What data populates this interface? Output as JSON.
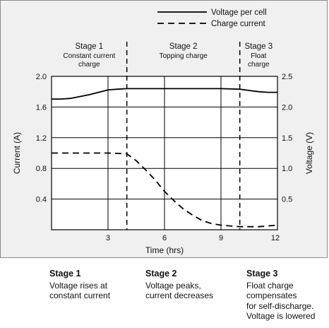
{
  "chart_data": {
    "type": "line",
    "xlabel": "Time (hrs)",
    "ylabel_left": "Current (A)",
    "ylabel_right": "Voltage (V)",
    "xlim": [
      0,
      12
    ],
    "ylim_left": [
      0,
      2.0
    ],
    "ylim_right": [
      0,
      2.5
    ],
    "x_ticks": [
      3,
      6,
      9,
      12
    ],
    "y_left_ticks": [
      0.4,
      0.8,
      1.2,
      1.6,
      2.0
    ],
    "y_right_ticks": [
      0.5,
      1.0,
      1.5,
      2.0,
      2.5
    ],
    "x_tick_labels": [
      "3",
      "6",
      "9",
      "12"
    ],
    "y_left_tick_labels": [
      "0.4",
      "0.8",
      "1.2",
      "1.6",
      "2.0"
    ],
    "y_right_tick_labels": [
      "0.5",
      "1.0",
      "1.5",
      "2.0",
      "2.5"
    ],
    "grid": true,
    "legend_position": "top-right",
    "stage_boundaries": [
      4,
      10
    ],
    "stages": [
      {
        "title": "Stage 1",
        "subtitle": [
          "Constant current",
          "charge"
        ]
      },
      {
        "title": "Stage 2",
        "subtitle": [
          "Topping charge"
        ]
      },
      {
        "title": "Stage 3",
        "subtitle": [
          "Float",
          "charge"
        ]
      }
    ],
    "series": [
      {
        "name": "Voltage per cell",
        "axis": "right",
        "style": "solid",
        "x": [
          0,
          0.5,
          1,
          1.5,
          2,
          2.5,
          3,
          3.5,
          4,
          6,
          8,
          9,
          10,
          10.5,
          11,
          11.5,
          12
        ],
        "y": [
          2.13,
          2.13,
          2.14,
          2.17,
          2.2,
          2.24,
          2.28,
          2.29,
          2.3,
          2.3,
          2.3,
          2.3,
          2.29,
          2.27,
          2.25,
          2.24,
          2.24
        ]
      },
      {
        "name": "Charge current",
        "axis": "left",
        "style": "dashed",
        "x": [
          0,
          1,
          2,
          3,
          4,
          4.5,
          5,
          5.5,
          6,
          6.5,
          7,
          7.5,
          8,
          8.5,
          9,
          9.5,
          10,
          10.5,
          11,
          11.5,
          12
        ],
        "y": [
          1.0,
          1.0,
          1.0,
          1.0,
          0.99,
          0.9,
          0.78,
          0.65,
          0.5,
          0.38,
          0.27,
          0.19,
          0.12,
          0.08,
          0.06,
          0.05,
          0.04,
          0.04,
          0.04,
          0.05,
          0.06
        ]
      }
    ]
  },
  "captions": [
    {
      "title": "Stage 1",
      "lines": [
        "Voltage rises at",
        "constant current"
      ]
    },
    {
      "title": "Stage 2",
      "lines": [
        "Voltage peaks,",
        "current decreases"
      ]
    },
    {
      "title": "Stage 3",
      "lines": [
        "Float charge",
        "compensates",
        "for self-discharge.",
        "Voltage is lowered"
      ]
    }
  ]
}
